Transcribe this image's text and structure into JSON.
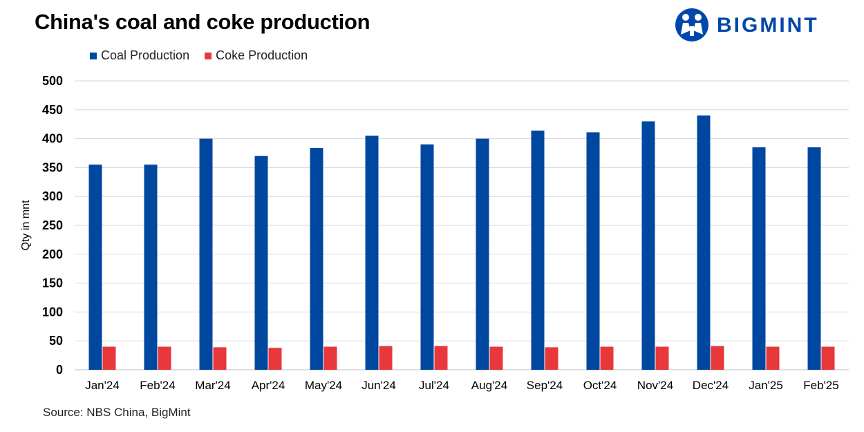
{
  "header": {
    "title": "China's coal and coke production",
    "brand": "BIGMINT"
  },
  "footer": {
    "source": "Source: NBS China, BigMint"
  },
  "colors": {
    "coal": "#0047a0",
    "coke": "#e8383b",
    "brand": "#0047ab"
  },
  "chart_data": {
    "type": "bar",
    "title": "China's coal and coke production",
    "xlabel": "",
    "ylabel": "Qty in mnt",
    "ylim": [
      0,
      500
    ],
    "yticks": [
      0,
      50,
      100,
      150,
      200,
      250,
      300,
      350,
      400,
      450,
      500
    ],
    "grid": true,
    "legend_position": "top-left",
    "categories": [
      "Jan'24",
      "Feb'24",
      "Mar'24",
      "Apr'24",
      "May'24",
      "Jun'24",
      "Jul'24",
      "Aug'24",
      "Sep'24",
      "Oct'24",
      "Nov'24",
      "Dec'24",
      "Jan'25",
      "Feb'25"
    ],
    "series": [
      {
        "name": "Coal Production",
        "values": [
          355,
          355,
          400,
          370,
          384,
          405,
          390,
          400,
          414,
          411,
          430,
          440,
          385,
          385
        ]
      },
      {
        "name": "Coke Production",
        "values": [
          40,
          40,
          39,
          38,
          40,
          41,
          41,
          40,
          39,
          40,
          40,
          41,
          40,
          40
        ]
      }
    ]
  }
}
